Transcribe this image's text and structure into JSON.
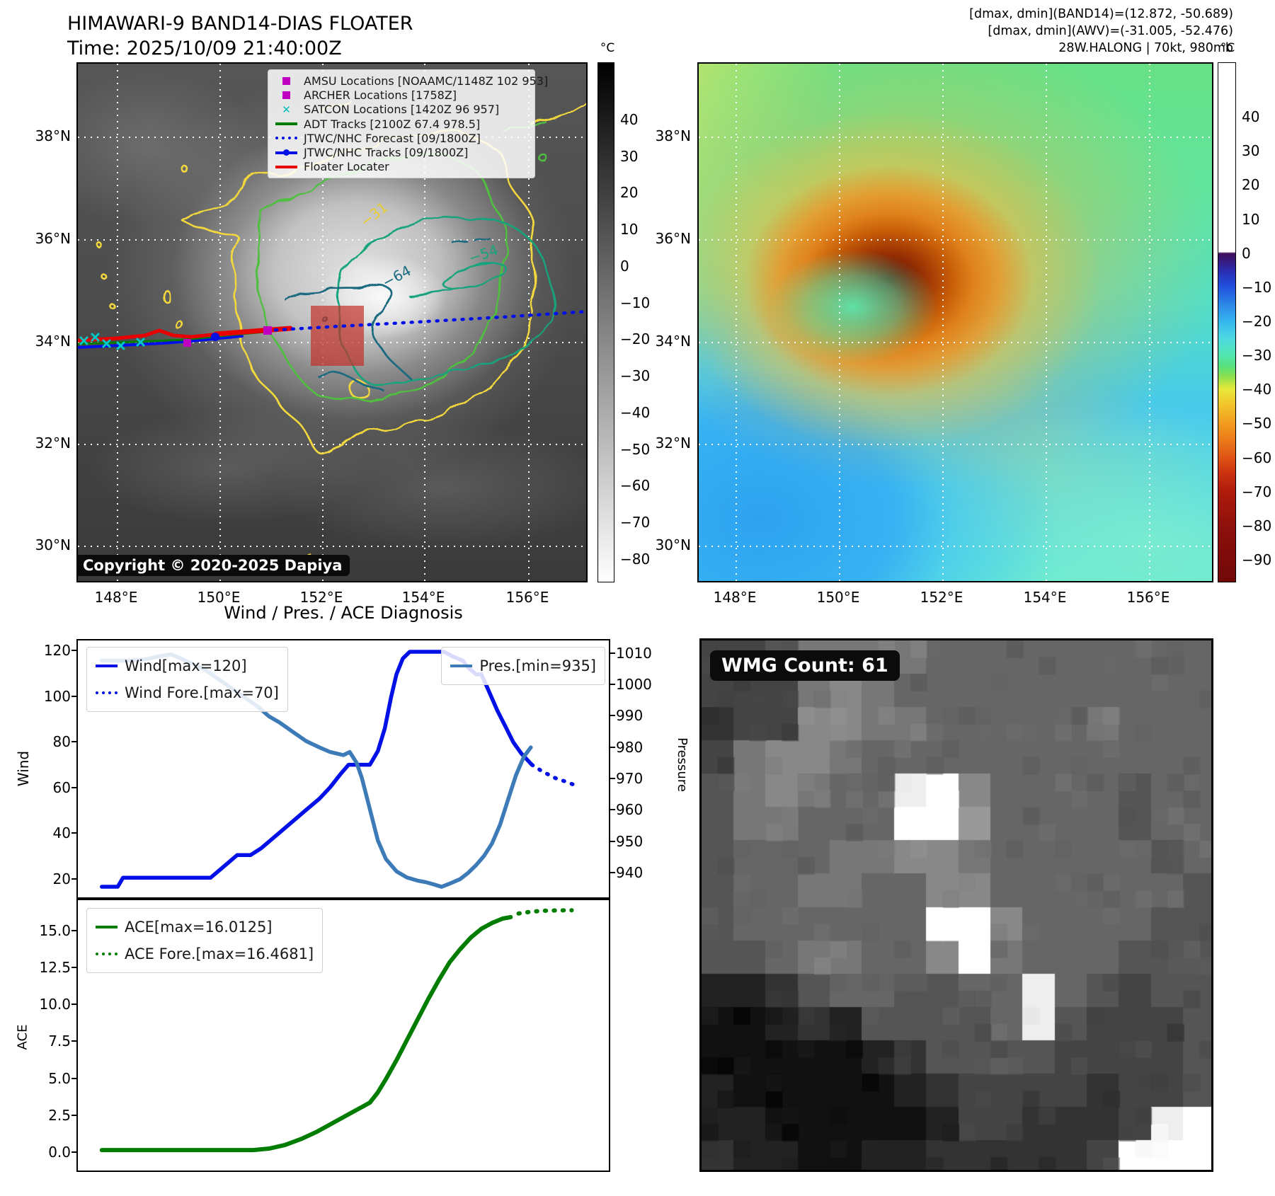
{
  "panel_band14": {
    "title": "HIMAWARI-9 BAND14-DIAS FLOATER",
    "time_line": "Time: 2025/10/09 21:40:00Z",
    "copyright": "Copyright © 2020-2025 Dapiya",
    "colorbar": {
      "unit": "°C",
      "ticks": [
        "40",
        "30",
        "20",
        "10",
        "0",
        "−10",
        "−20",
        "−30",
        "−40",
        "−50",
        "−60",
        "−70",
        "−80"
      ]
    },
    "lat_ticks": [
      "38°N",
      "36°N",
      "34°N",
      "32°N",
      "30°N"
    ],
    "lon_ticks": [
      "148°E",
      "150°E",
      "152°E",
      "154°E",
      "156°E"
    ],
    "contour_labels": [
      {
        "text": "−31",
        "color": "#e8cc30"
      },
      {
        "text": "−54",
        "color": "#18a47c"
      },
      {
        "text": "−64",
        "color": "#1b6b80"
      },
      {
        "text": "−31",
        "color": "#e8cc30"
      }
    ],
    "legend": [
      {
        "marker": "square",
        "color": "#c000c0",
        "label": "AMSU Locations [NOAAMC/1148Z 102 953]"
      },
      {
        "marker": "square",
        "color": "#c000c0",
        "label": "ARCHER Locations [1758Z]"
      },
      {
        "marker": "x",
        "color": "#00bcbc",
        "label": "SATCON Locations [1420Z 96 957]"
      },
      {
        "marker": "line",
        "color": "#007d00",
        "label": "ADT Tracks [2100Z 67.4 978.5]"
      },
      {
        "marker": "dotted",
        "color": "#0010e6",
        "label": "JTWC/NHC Forecast [09/1800Z]"
      },
      {
        "marker": "linedot",
        "color": "#0010e6",
        "label": "JTWC/NHC Tracks [09/1800Z]"
      },
      {
        "marker": "line",
        "color": "#e80000",
        "label": "Floater Locater"
      }
    ]
  },
  "panel_awv": {
    "header_lines": [
      "[dmax, dmin](BAND14)=(12.872, -50.689)",
      "[dmax, dmin](AWV)=(-31.005, -52.476)",
      "28W.HALONG | 70kt, 980mb"
    ],
    "colorbar": {
      "unit": "°C",
      "ticks": [
        "40",
        "30",
        "20",
        "10",
        "0",
        "−10",
        "−20",
        "−30",
        "−40",
        "−50",
        "−60",
        "−70",
        "−80",
        "−90"
      ]
    },
    "lat_ticks": [
      "38°N",
      "36°N",
      "34°N",
      "32°N",
      "30°N"
    ],
    "lon_ticks": [
      "148°E",
      "150°E",
      "152°E",
      "154°E",
      "156°E"
    ]
  },
  "wmg": {
    "label": "WMG Count: 61",
    "grid": [
      "4457777666666666",
      "4447876666666666",
      "3448877666667666",
      "4788766666666666",
      "578766ef86666566",
      "577666ff96666566",
      "5666778876666656",
      "5667766886666665",
      "5666666ff8666655",
      "55677668f7666555",
      "2235665566e65455",
      "1123255556e54445",
      "1111123555544445",
      "2111112344443445",
      "22111112443334ef",
      "3221122333334fff"
    ]
  },
  "chart_data": [
    {
      "type": "line",
      "title": "Wind / Pres. / ACE Diagnosis",
      "ylabel": "Wind",
      "y2label": "Pressure",
      "ylim": [
        11.3,
        125
      ],
      "y2lim": [
        931.6,
        1014.5
      ],
      "yticks": [
        "20",
        "40",
        "60",
        "80",
        "100",
        "120"
      ],
      "y2ticks": [
        "940",
        "950",
        "960",
        "970",
        "980",
        "990",
        "1000",
        "1010"
      ],
      "grid": false,
      "legend_position": "upper left / upper right",
      "series": [
        {
          "name": "Wind[max=120]",
          "axis": "y",
          "style": "solid",
          "color": "#0010e6",
          "width": 5.5,
          "points": [
            [
              0.045,
              16
            ],
            [
              0.075,
              16
            ],
            [
              0.085,
              20
            ],
            [
              0.25,
              20
            ],
            [
              0.27,
              24
            ],
            [
              0.3,
              30
            ],
            [
              0.325,
              30
            ],
            [
              0.345,
              33
            ],
            [
              0.37,
              38
            ],
            [
              0.4,
              44
            ],
            [
              0.43,
              50
            ],
            [
              0.455,
              55
            ],
            [
              0.475,
              60
            ],
            [
              0.495,
              66
            ],
            [
              0.51,
              70
            ],
            [
              0.55,
              70
            ],
            [
              0.565,
              76
            ],
            [
              0.578,
              86
            ],
            [
              0.59,
              100
            ],
            [
              0.6,
              110
            ],
            [
              0.612,
              117
            ],
            [
              0.625,
              120
            ],
            [
              0.69,
              120
            ],
            [
              0.705,
              118
            ],
            [
              0.725,
              116
            ],
            [
              0.735,
              113
            ],
            [
              0.75,
              110
            ],
            [
              0.76,
              110
            ],
            [
              0.775,
              102
            ],
            [
              0.79,
              94
            ],
            [
              0.805,
              87
            ],
            [
              0.82,
              80
            ],
            [
              0.835,
              75
            ],
            [
              0.855,
              70
            ]
          ]
        },
        {
          "name": "Wind Fore.[max=70]",
          "axis": "y",
          "style": "dotted",
          "color": "#0010e6",
          "width": 5.5,
          "points": [
            [
              0.855,
              70
            ],
            [
              0.875,
              67
            ],
            [
              0.9,
              64
            ],
            [
              0.925,
              62
            ],
            [
              0.945,
              60
            ]
          ]
        },
        {
          "name": "Pres.[min=935]",
          "axis": "y2",
          "style": "solid",
          "color": "#3c7ab8",
          "width": 5.5,
          "points": [
            [
              0.045,
              1008
            ],
            [
              0.1,
              1008
            ],
            [
              0.13,
              1008.5
            ],
            [
              0.155,
              1009.5
            ],
            [
              0.175,
              1010
            ],
            [
              0.19,
              1009
            ],
            [
              0.215,
              1007
            ],
            [
              0.24,
              1005
            ],
            [
              0.265,
              1002
            ],
            [
              0.29,
              999
            ],
            [
              0.315,
              996
            ],
            [
              0.34,
              993
            ],
            [
              0.36,
              990
            ],
            [
              0.38,
              988
            ],
            [
              0.405,
              985
            ],
            [
              0.43,
              982
            ],
            [
              0.455,
              980
            ],
            [
              0.475,
              978.5
            ],
            [
              0.5,
              977.5
            ],
            [
              0.512,
              978.5
            ],
            [
              0.525,
              975
            ],
            [
              0.535,
              970
            ],
            [
              0.55,
              960
            ],
            [
              0.565,
              950
            ],
            [
              0.58,
              944
            ],
            [
              0.6,
              940
            ],
            [
              0.62,
              938
            ],
            [
              0.64,
              937
            ],
            [
              0.655,
              936.5
            ],
            [
              0.67,
              935.8
            ],
            [
              0.685,
              935
            ],
            [
              0.7,
              936
            ],
            [
              0.72,
              937.5
            ],
            [
              0.735,
              939.5
            ],
            [
              0.75,
              942
            ],
            [
              0.765,
              945
            ],
            [
              0.78,
              949
            ],
            [
              0.795,
              955
            ],
            [
              0.81,
              963
            ],
            [
              0.825,
              971
            ],
            [
              0.84,
              977
            ],
            [
              0.853,
              980
            ]
          ]
        }
      ]
    },
    {
      "type": "line",
      "ylabel": "ACE",
      "ylim": [
        -1.35,
        17.16
      ],
      "yticks": [
        "0.0",
        "2.5",
        "5.0",
        "7.5",
        "10.0",
        "12.5",
        "15.0"
      ],
      "grid": false,
      "legend_position": "upper left",
      "series": [
        {
          "name": "ACE[max=16.0125]",
          "axis": "y",
          "style": "solid",
          "color": "#007d00",
          "width": 6,
          "points": [
            [
              0.045,
              0.05
            ],
            [
              0.33,
              0.05
            ],
            [
              0.36,
              0.15
            ],
            [
              0.39,
              0.4
            ],
            [
              0.42,
              0.8
            ],
            [
              0.45,
              1.3
            ],
            [
              0.48,
              1.9
            ],
            [
              0.51,
              2.5
            ],
            [
              0.535,
              3.0
            ],
            [
              0.55,
              3.3
            ],
            [
              0.565,
              4.0
            ],
            [
              0.58,
              4.9
            ],
            [
              0.6,
              6.2
            ],
            [
              0.62,
              7.6
            ],
            [
              0.64,
              9.0
            ],
            [
              0.66,
              10.4
            ],
            [
              0.68,
              11.7
            ],
            [
              0.7,
              12.9
            ],
            [
              0.72,
              13.8
            ],
            [
              0.74,
              14.6
            ],
            [
              0.76,
              15.2
            ],
            [
              0.78,
              15.6
            ],
            [
              0.8,
              15.9
            ],
            [
              0.815,
              16.0
            ]
          ]
        },
        {
          "name": "ACE Fore.[max=16.4681]",
          "axis": "y",
          "style": "dotted",
          "color": "#007d00",
          "width": 6,
          "points": [
            [
              0.83,
              16.25
            ],
            [
              0.855,
              16.38
            ],
            [
              0.88,
              16.44
            ],
            [
              0.905,
              16.46
            ],
            [
              0.93,
              16.47
            ]
          ]
        }
      ]
    }
  ]
}
